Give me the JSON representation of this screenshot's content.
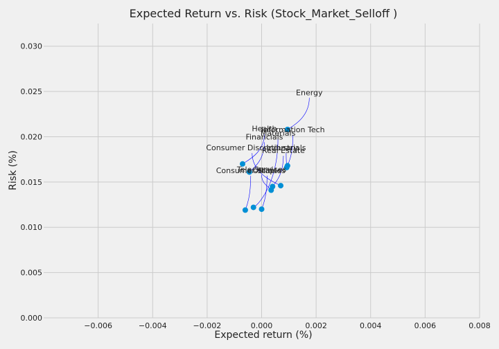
{
  "chart_data": {
    "type": "scatter",
    "title": "Expected Return vs. Risk (Stock_Market_Selloff )",
    "xlabel": "Expected return (%)",
    "ylabel": "Risk (%)",
    "xlim": [
      -0.008,
      0.008
    ],
    "ylim": [
      0.0,
      0.0325
    ],
    "xticks": [
      -0.006,
      -0.004,
      -0.002,
      0.0,
      0.002,
      0.004,
      0.006,
      0.008
    ],
    "xtick_labels": [
      "−0.006",
      "−0.004",
      "−0.002",
      "0.000",
      "0.002",
      "0.004",
      "0.006",
      "0.008"
    ],
    "yticks": [
      0.0,
      0.005,
      0.01,
      0.015,
      0.02,
      0.025,
      0.03
    ],
    "ytick_labels": [
      "0.000",
      "0.005",
      "0.010",
      "0.015",
      "0.020",
      "0.025",
      "0.030"
    ],
    "grid": true,
    "colors": {
      "marker": "#008fd5",
      "leader": "#0000ff",
      "grid": "#cbcbcb",
      "background": "#f0f0f0"
    },
    "points": [
      {
        "label": "Energy",
        "x": 0.00095,
        "y": 0.0208,
        "label_x": 0.00175,
        "label_y": 0.0246
      },
      {
        "label": "Information Tech",
        "x": 0.00095,
        "y": 0.0168,
        "label_x": 0.00115,
        "label_y": 0.0205
      },
      {
        "label": "Health",
        "x": -0.0007,
        "y": 0.017,
        "label_x": 0.0001,
        "label_y": 0.0206
      },
      {
        "label": "Materials",
        "x": -0.0003,
        "y": 0.0122,
        "label_x": 0.0006,
        "label_y": 0.0201
      },
      {
        "label": "Financials",
        "x": -0.00045,
        "y": 0.0161,
        "label_x": 0.0001,
        "label_y": 0.0197
      },
      {
        "label": "Consumer Discretionary",
        "x": 0.0007,
        "y": 0.0146,
        "label_x": -0.00035,
        "label_y": 0.0185
      },
      {
        "label": "Industrials",
        "x": 0.00092,
        "y": 0.0166,
        "label_x": 0.0009,
        "label_y": 0.0185
      },
      {
        "label": "Real Estate",
        "x": 0.0004,
        "y": 0.0145,
        "label_x": 0.0008,
        "label_y": 0.0182
      },
      {
        "label": "Tele Services",
        "x": 0.00035,
        "y": 0.0141,
        "label_x": 0.0,
        "label_y": 0.0161
      },
      {
        "label": "Consumer Staples",
        "x": -0.0006,
        "y": 0.0119,
        "label_x": -0.0004,
        "label_y": 0.016
      },
      {
        "label": "Utilities",
        "x": 0.0,
        "y": 0.012,
        "label_x": 0.0002,
        "label_y": 0.016
      }
    ]
  }
}
